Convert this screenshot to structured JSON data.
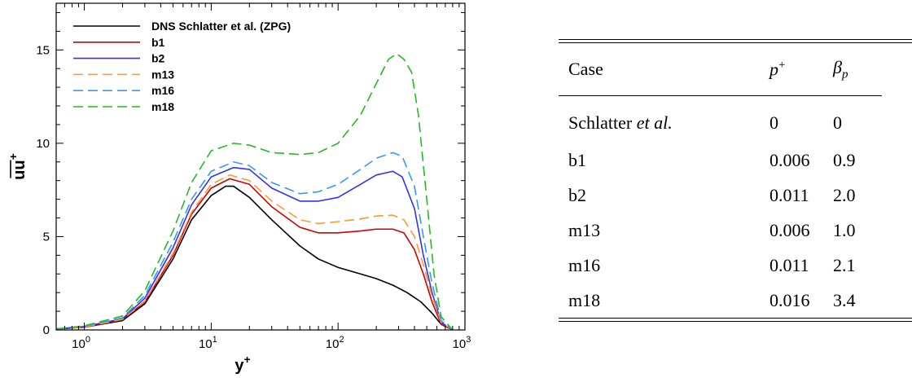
{
  "chart_data": {
    "type": "line",
    "xlabel": "y",
    "xlabel_sup": "+",
    "ylabel": "uu",
    "ylabel_sup": "+",
    "xscale": "log",
    "xlim": [
      0.6,
      1000
    ],
    "ylim": [
      0,
      17.5
    ],
    "xticks": [
      {
        "base": "10",
        "exp": "0",
        "v": 1
      },
      {
        "base": "10",
        "exp": "1",
        "v": 10
      },
      {
        "base": "10",
        "exp": "2",
        "v": 100
      },
      {
        "base": "10",
        "exp": "3",
        "v": 1000
      }
    ],
    "yticks": [
      {
        "label": "0",
        "v": 0
      },
      {
        "label": "5",
        "v": 5
      },
      {
        "label": "10",
        "v": 10
      },
      {
        "label": "15",
        "v": 15
      }
    ],
    "legend_position": "top-left",
    "series": [
      {
        "name": "DNS Schlatter et al. (ZPG)",
        "color": "#000000",
        "dash": "solid",
        "x": [
          0.6,
          1,
          2,
          3,
          5,
          7,
          10,
          13,
          15,
          20,
          30,
          50,
          70,
          100,
          150,
          200,
          270,
          350,
          450,
          550,
          650,
          800
        ],
        "y": [
          0.05,
          0.15,
          0.5,
          1.4,
          3.8,
          5.9,
          7.2,
          7.7,
          7.7,
          7.1,
          5.9,
          4.5,
          3.8,
          3.35,
          3.0,
          2.75,
          2.4,
          2.0,
          1.5,
          0.9,
          0.3,
          0.0
        ]
      },
      {
        "name": "b1",
        "color": "#d10000",
        "dash": "solid",
        "x": [
          0.6,
          1,
          2,
          3,
          5,
          7,
          10,
          14,
          20,
          30,
          50,
          70,
          100,
          150,
          200,
          270,
          330,
          400,
          470,
          550,
          650,
          800
        ],
        "y": [
          0.05,
          0.15,
          0.55,
          1.5,
          4.0,
          6.2,
          7.6,
          8.1,
          7.8,
          6.6,
          5.5,
          5.2,
          5.2,
          5.3,
          5.4,
          5.4,
          5.2,
          4.3,
          3.0,
          1.5,
          0.3,
          0.0
        ]
      },
      {
        "name": "b2",
        "color": "#3333ee",
        "dash": "solid",
        "x": [
          0.6,
          1,
          2,
          3,
          5,
          7,
          10,
          15,
          20,
          30,
          50,
          70,
          100,
          150,
          200,
          270,
          320,
          400,
          470,
          550,
          650,
          800
        ],
        "y": [
          0.05,
          0.18,
          0.6,
          1.7,
          4.4,
          6.7,
          8.2,
          8.7,
          8.6,
          7.6,
          6.9,
          6.9,
          7.1,
          7.8,
          8.3,
          8.5,
          8.2,
          6.5,
          4.0,
          2.0,
          0.4,
          0.0
        ]
      },
      {
        "name": "m13",
        "color": "#ff9933",
        "dash": "dashed",
        "x": [
          0.6,
          1,
          2,
          3,
          5,
          7,
          10,
          14,
          20,
          30,
          50,
          70,
          100,
          150,
          200,
          270,
          330,
          400,
          470,
          550,
          650,
          800
        ],
        "y": [
          0.05,
          0.16,
          0.57,
          1.55,
          4.1,
          6.3,
          7.8,
          8.3,
          8.0,
          6.9,
          5.9,
          5.7,
          5.8,
          5.95,
          6.1,
          6.15,
          5.9,
          5.0,
          3.5,
          1.8,
          0.4,
          0.0
        ]
      },
      {
        "name": "m16",
        "color": "#3399ff",
        "dash": "dashed",
        "x": [
          0.6,
          1,
          2,
          3,
          5,
          7,
          10,
          15,
          20,
          30,
          50,
          70,
          100,
          150,
          200,
          270,
          320,
          400,
          470,
          550,
          650,
          800
        ],
        "y": [
          0.05,
          0.2,
          0.65,
          1.85,
          4.7,
          7.0,
          8.5,
          9.0,
          8.8,
          7.9,
          7.3,
          7.4,
          7.8,
          8.6,
          9.2,
          9.5,
          9.3,
          7.7,
          5.0,
          2.5,
          0.5,
          0.0
        ]
      },
      {
        "name": "m18",
        "color": "#22bb22",
        "dash": "dashed",
        "x": [
          0.6,
          1,
          2,
          3,
          5,
          7,
          10,
          15,
          20,
          30,
          50,
          70,
          100,
          150,
          200,
          250,
          290,
          330,
          380,
          430,
          500,
          570,
          650,
          800
        ],
        "y": [
          0.05,
          0.22,
          0.75,
          2.1,
          5.3,
          7.9,
          9.6,
          10.0,
          9.9,
          9.5,
          9.4,
          9.5,
          10.0,
          11.5,
          13.2,
          14.5,
          14.8,
          14.5,
          13.8,
          11.5,
          7.0,
          3.0,
          0.7,
          0.0
        ]
      }
    ]
  },
  "table": {
    "headers": {
      "case": "Case",
      "p": "p",
      "p_sup": "+",
      "beta": "β",
      "beta_sub": "p"
    },
    "rows": [
      {
        "case": "Schlatter",
        "case_italic": "et al.",
        "p": "0",
        "beta": "0"
      },
      {
        "case": "b1",
        "case_italic": "",
        "p": "0.006",
        "beta": "0.9"
      },
      {
        "case": "b2",
        "case_italic": "",
        "p": "0.011",
        "beta": "2.0"
      },
      {
        "case": "m13",
        "case_italic": "",
        "p": "0.006",
        "beta": "1.0"
      },
      {
        "case": "m16",
        "case_italic": "",
        "p": "0.011",
        "beta": "2.1"
      },
      {
        "case": "m18",
        "case_italic": "",
        "p": "0.016",
        "beta": "3.4"
      }
    ]
  }
}
